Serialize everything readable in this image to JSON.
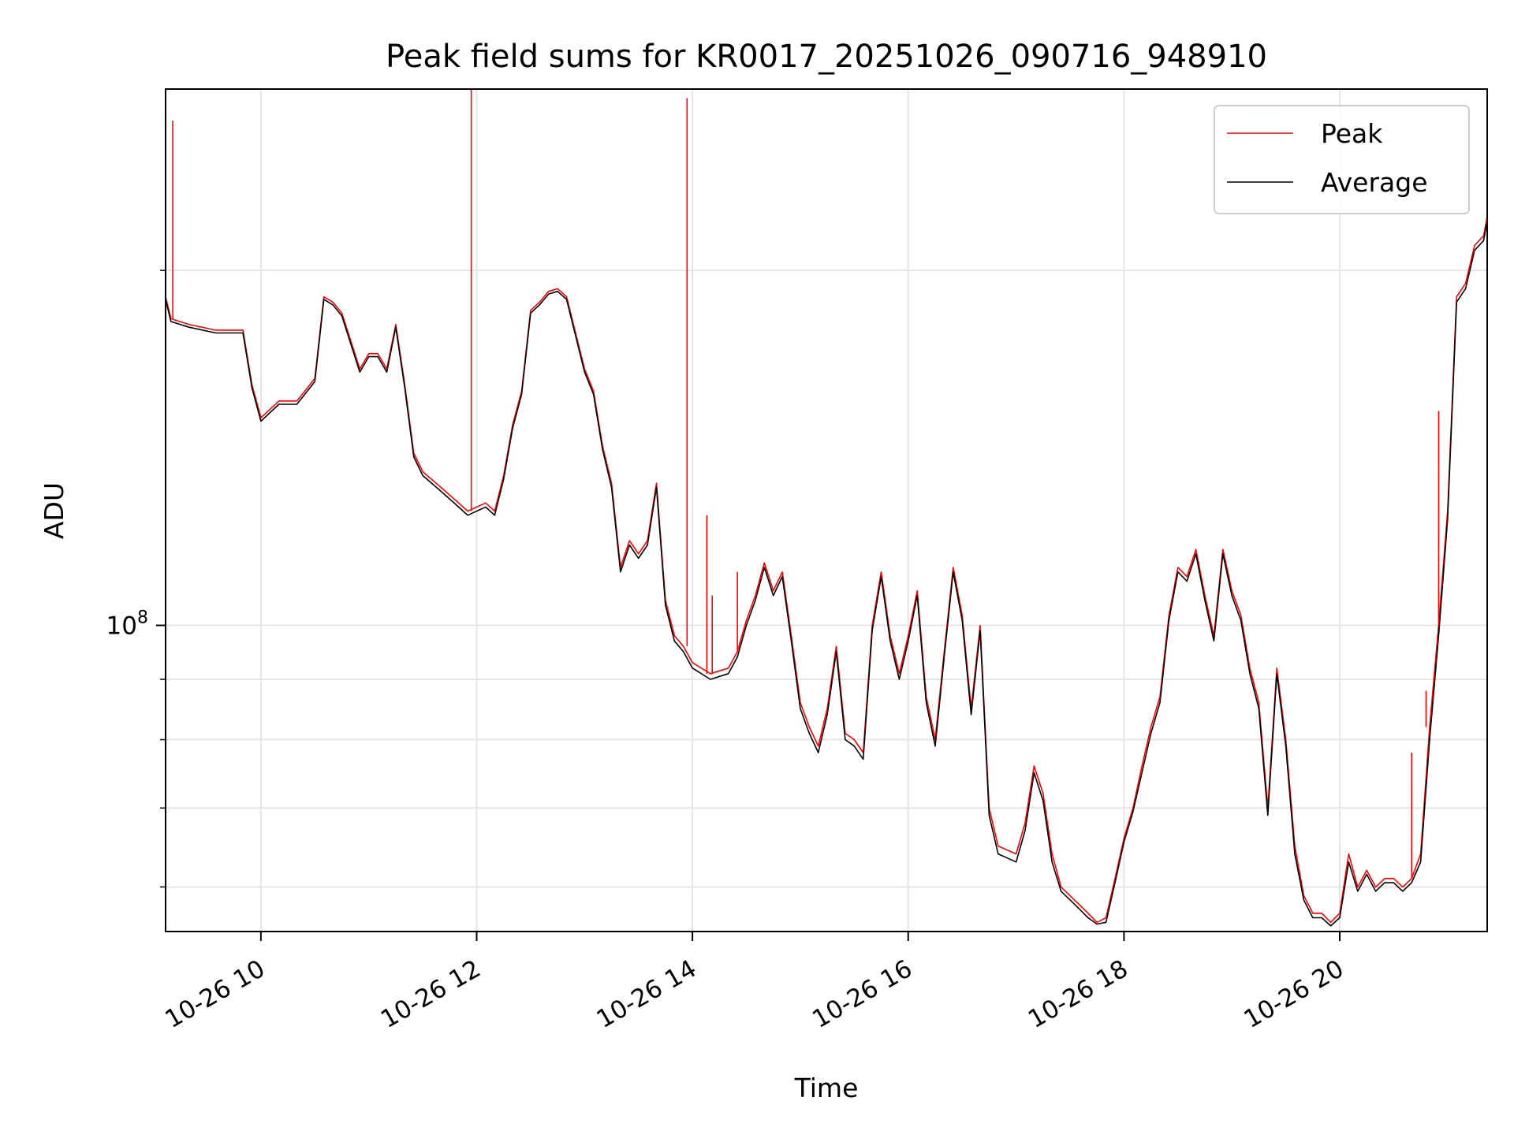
{
  "chart_data": {
    "type": "line",
    "title": "Peak field sums for KR0017_20251026_090716_948910",
    "xlabel": "Time",
    "ylabel": "ADU",
    "y_scale": "log",
    "grid": true,
    "legend_placement": "top-right",
    "xlim": [
      "2025-10-26 09:07",
      "2025-10-26 21:22"
    ],
    "ylim": [
      55000000,
      285000000
    ],
    "x_ticks": [
      {
        "value": "2025-10-26 10:00",
        "label": "10-26 10"
      },
      {
        "value": "2025-10-26 12:00",
        "label": "10-26 12"
      },
      {
        "value": "2025-10-26 14:00",
        "label": "10-26 14"
      },
      {
        "value": "2025-10-26 16:00",
        "label": "10-26 16"
      },
      {
        "value": "2025-10-26 18:00",
        "label": "10-26 18"
      },
      {
        "value": "2025-10-26 20:00",
        "label": "10-26 20"
      }
    ],
    "y_major_ticks": [
      {
        "value": 100000000,
        "base": "10",
        "exponent": "8"
      }
    ],
    "y_minor_ticks": [
      60000000,
      70000000,
      80000000,
      90000000,
      200000000
    ],
    "series": [
      {
        "name": "Peak",
        "color": "#ff0000",
        "x": [
          "2025-10-26 09:07",
          "2025-10-26 09:10",
          "2025-10-26 09:20",
          "2025-10-26 09:35",
          "2025-10-26 09:50",
          "2025-10-26 09:55",
          "2025-10-26 10:00",
          "2025-10-26 10:10",
          "2025-10-26 10:20",
          "2025-10-26 10:30",
          "2025-10-26 10:35",
          "2025-10-26 10:40",
          "2025-10-26 10:45",
          "2025-10-26 10:55",
          "2025-10-26 11:00",
          "2025-10-26 11:05",
          "2025-10-26 11:10",
          "2025-10-26 11:15",
          "2025-10-26 11:20",
          "2025-10-26 11:25",
          "2025-10-26 11:30",
          "2025-10-26 11:40",
          "2025-10-26 11:50",
          "2025-10-26 11:55",
          "2025-10-26 12:05",
          "2025-10-26 12:10",
          "2025-10-26 12:15",
          "2025-10-26 12:20",
          "2025-10-26 12:25",
          "2025-10-26 12:30",
          "2025-10-26 12:35",
          "2025-10-26 12:40",
          "2025-10-26 12:45",
          "2025-10-26 12:50",
          "2025-10-26 13:00",
          "2025-10-26 13:05",
          "2025-10-26 13:10",
          "2025-10-26 13:15",
          "2025-10-26 13:20",
          "2025-10-26 13:25",
          "2025-10-26 13:30",
          "2025-10-26 13:35",
          "2025-10-26 13:40",
          "2025-10-26 13:45",
          "2025-10-26 13:50",
          "2025-10-26 13:55",
          "2025-10-26 14:00",
          "2025-10-26 14:10",
          "2025-10-26 14:20",
          "2025-10-26 14:25",
          "2025-10-26 14:30",
          "2025-10-26 14:35",
          "2025-10-26 14:40",
          "2025-10-26 14:45",
          "2025-10-26 14:50",
          "2025-10-26 14:55",
          "2025-10-26 15:00",
          "2025-10-26 15:05",
          "2025-10-26 15:10",
          "2025-10-26 15:15",
          "2025-10-26 15:20",
          "2025-10-26 15:25",
          "2025-10-26 15:30",
          "2025-10-26 15:35",
          "2025-10-26 15:40",
          "2025-10-26 15:45",
          "2025-10-26 15:50",
          "2025-10-26 15:55",
          "2025-10-26 16:00",
          "2025-10-26 16:05",
          "2025-10-26 16:10",
          "2025-10-26 16:15",
          "2025-10-26 16:20",
          "2025-10-26 16:25",
          "2025-10-26 16:30",
          "2025-10-26 16:35",
          "2025-10-26 16:40",
          "2025-10-26 16:45",
          "2025-10-26 16:50",
          "2025-10-26 17:00",
          "2025-10-26 17:05",
          "2025-10-26 17:10",
          "2025-10-26 17:15",
          "2025-10-26 17:20",
          "2025-10-26 17:25",
          "2025-10-26 17:30",
          "2025-10-26 17:35",
          "2025-10-26 17:40",
          "2025-10-26 17:45",
          "2025-10-26 17:50",
          "2025-10-26 17:55",
          "2025-10-26 18:00",
          "2025-10-26 18:05",
          "2025-10-26 18:10",
          "2025-10-26 18:15",
          "2025-10-26 18:20",
          "2025-10-26 18:25",
          "2025-10-26 18:30",
          "2025-10-26 18:35",
          "2025-10-26 18:40",
          "2025-10-26 18:45",
          "2025-10-26 18:50",
          "2025-10-26 18:55",
          "2025-10-26 19:00",
          "2025-10-26 19:05",
          "2025-10-26 19:10",
          "2025-10-26 19:15",
          "2025-10-26 19:20",
          "2025-10-26 19:25",
          "2025-10-26 19:30",
          "2025-10-26 19:35",
          "2025-10-26 19:40",
          "2025-10-26 19:45",
          "2025-10-26 19:50",
          "2025-10-26 19:55",
          "2025-10-26 20:00",
          "2025-10-26 20:05",
          "2025-10-26 20:10",
          "2025-10-26 20:15",
          "2025-10-26 20:20",
          "2025-10-26 20:25",
          "2025-10-26 20:30",
          "2025-10-26 20:35",
          "2025-10-26 20:40",
          "2025-10-26 20:45",
          "2025-10-26 20:50",
          "2025-10-26 20:55",
          "2025-10-26 21:00",
          "2025-10-26 21:05",
          "2025-10-26 21:10",
          "2025-10-26 21:15",
          "2025-10-26 21:20",
          "2025-10-26 21:22"
        ],
        "values": [
          190000000,
          182000000,
          180000000,
          178000000,
          178000000,
          160000000,
          150000000,
          155000000,
          155000000,
          162000000,
          190000000,
          188000000,
          184000000,
          165000000,
          170000000,
          170000000,
          165000000,
          180000000,
          160000000,
          140000000,
          135000000,
          131000000,
          127000000,
          125000000,
          127000000,
          125000000,
          134000000,
          148000000,
          158000000,
          185000000,
          188000000,
          192000000,
          193000000,
          190000000,
          165000000,
          158000000,
          142000000,
          132000000,
          112000000,
          118000000,
          115000000,
          118000000,
          132000000,
          105000000,
          98000000,
          96000000,
          93000000,
          91000000,
          92000000,
          95000000,
          101000000,
          106000000,
          113000000,
          107000000,
          111000000,
          98000000,
          86000000,
          82000000,
          79000000,
          85000000,
          96000000,
          81000000,
          80000000,
          78000000,
          100000000,
          111000000,
          98000000,
          91000000,
          98000000,
          107000000,
          87000000,
          80000000,
          95000000,
          112000000,
          102000000,
          85000000,
          100000000,
          70000000,
          65000000,
          64000000,
          68000000,
          76000000,
          72000000,
          64000000,
          60000000,
          59000000,
          58000000,
          57000000,
          56000000,
          56500000,
          61000000,
          66000000,
          70000000,
          76000000,
          82000000,
          87000000,
          102000000,
          112000000,
          110000000,
          116000000,
          106000000,
          98000000,
          116000000,
          107000000,
          102000000,
          92000000,
          86000000,
          70000000,
          92000000,
          80000000,
          65000000,
          59000000,
          57000000,
          57000000,
          56000000,
          57000000,
          64000000,
          60000000,
          62000000,
          60000000,
          61000000,
          61000000,
          60000000,
          61000000,
          64000000,
          82000000,
          100000000,
          125000000,
          190000000,
          195000000,
          210000000,
          214000000,
          222000000
        ]
      },
      {
        "name": "Average",
        "color": "#000000",
        "x": [
          "2025-10-26 09:07",
          "2025-10-26 09:10",
          "2025-10-26 09:20",
          "2025-10-26 09:35",
          "2025-10-26 09:50",
          "2025-10-26 09:55",
          "2025-10-26 10:00",
          "2025-10-26 10:10",
          "2025-10-26 10:20",
          "2025-10-26 10:30",
          "2025-10-26 10:35",
          "2025-10-26 10:40",
          "2025-10-26 10:45",
          "2025-10-26 10:55",
          "2025-10-26 11:00",
          "2025-10-26 11:05",
          "2025-10-26 11:10",
          "2025-10-26 11:15",
          "2025-10-26 11:20",
          "2025-10-26 11:25",
          "2025-10-26 11:30",
          "2025-10-26 11:40",
          "2025-10-26 11:50",
          "2025-10-26 11:55",
          "2025-10-26 12:05",
          "2025-10-26 12:10",
          "2025-10-26 12:15",
          "2025-10-26 12:20",
          "2025-10-26 12:25",
          "2025-10-26 12:30",
          "2025-10-26 12:35",
          "2025-10-26 12:40",
          "2025-10-26 12:45",
          "2025-10-26 12:50",
          "2025-10-26 13:00",
          "2025-10-26 13:05",
          "2025-10-26 13:10",
          "2025-10-26 13:15",
          "2025-10-26 13:20",
          "2025-10-26 13:25",
          "2025-10-26 13:30",
          "2025-10-26 13:35",
          "2025-10-26 13:40",
          "2025-10-26 13:45",
          "2025-10-26 13:50",
          "2025-10-26 13:55",
          "2025-10-26 14:00",
          "2025-10-26 14:10",
          "2025-10-26 14:20",
          "2025-10-26 14:25",
          "2025-10-26 14:30",
          "2025-10-26 14:35",
          "2025-10-26 14:40",
          "2025-10-26 14:45",
          "2025-10-26 14:50",
          "2025-10-26 14:55",
          "2025-10-26 15:00",
          "2025-10-26 15:05",
          "2025-10-26 15:10",
          "2025-10-26 15:15",
          "2025-10-26 15:20",
          "2025-10-26 15:25",
          "2025-10-26 15:30",
          "2025-10-26 15:35",
          "2025-10-26 15:40",
          "2025-10-26 15:45",
          "2025-10-26 15:50",
          "2025-10-26 15:55",
          "2025-10-26 16:00",
          "2025-10-26 16:05",
          "2025-10-26 16:10",
          "2025-10-26 16:15",
          "2025-10-26 16:20",
          "2025-10-26 16:25",
          "2025-10-26 16:30",
          "2025-10-26 16:35",
          "2025-10-26 16:40",
          "2025-10-26 16:45",
          "2025-10-26 16:50",
          "2025-10-26 17:00",
          "2025-10-26 17:05",
          "2025-10-26 17:10",
          "2025-10-26 17:15",
          "2025-10-26 17:20",
          "2025-10-26 17:25",
          "2025-10-26 17:30",
          "2025-10-26 17:35",
          "2025-10-26 17:40",
          "2025-10-26 17:45",
          "2025-10-26 17:50",
          "2025-10-26 17:55",
          "2025-10-26 18:00",
          "2025-10-26 18:05",
          "2025-10-26 18:10",
          "2025-10-26 18:15",
          "2025-10-26 18:20",
          "2025-10-26 18:25",
          "2025-10-26 18:30",
          "2025-10-26 18:35",
          "2025-10-26 18:40",
          "2025-10-26 18:45",
          "2025-10-26 18:50",
          "2025-10-26 18:55",
          "2025-10-26 19:00",
          "2025-10-26 19:05",
          "2025-10-26 19:10",
          "2025-10-26 19:15",
          "2025-10-26 19:20",
          "2025-10-26 19:25",
          "2025-10-26 19:30",
          "2025-10-26 19:35",
          "2025-10-26 19:40",
          "2025-10-26 19:45",
          "2025-10-26 19:50",
          "2025-10-26 19:55",
          "2025-10-26 20:00",
          "2025-10-26 20:05",
          "2025-10-26 20:10",
          "2025-10-26 20:15",
          "2025-10-26 20:20",
          "2025-10-26 20:25",
          "2025-10-26 20:30",
          "2025-10-26 20:35",
          "2025-10-26 20:40",
          "2025-10-26 20:45",
          "2025-10-26 20:50",
          "2025-10-26 20:55",
          "2025-10-26 21:00",
          "2025-10-26 21:05",
          "2025-10-26 21:10",
          "2025-10-26 21:15",
          "2025-10-26 21:20",
          "2025-10-26 21:22"
        ],
        "values": [
          189000000,
          181000000,
          179000000,
          177000000,
          177000000,
          159000000,
          149000000,
          154000000,
          154000000,
          161000000,
          189000000,
          187000000,
          183000000,
          164000000,
          169000000,
          169000000,
          164000000,
          179000000,
          159000000,
          139000000,
          134000000,
          130000000,
          126000000,
          124000000,
          126000000,
          124000000,
          133000000,
          147000000,
          157000000,
          184000000,
          187000000,
          191000000,
          192000000,
          189000000,
          164000000,
          157000000,
          141000000,
          131000000,
          111000000,
          117000000,
          114000000,
          117000000,
          131000000,
          104000000,
          97000000,
          95000000,
          92000000,
          90000000,
          91000000,
          94000000,
          100000000,
          105000000,
          112000000,
          106000000,
          110000000,
          97000000,
          85000000,
          81000000,
          78000000,
          84000000,
          95000000,
          80000000,
          79000000,
          77000000,
          99000000,
          110000000,
          97000000,
          90000000,
          97000000,
          106000000,
          86000000,
          79000000,
          94000000,
          111000000,
          101000000,
          84000000,
          99000000,
          69000000,
          64000000,
          63000000,
          67000000,
          75000000,
          71000000,
          63000000,
          59500000,
          58500000,
          57500000,
          56500000,
          55800000,
          56000000,
          60500000,
          65500000,
          69500000,
          75000000,
          81000000,
          86000000,
          101000000,
          111000000,
          109000000,
          115000000,
          105000000,
          97000000,
          115000000,
          106000000,
          101000000,
          91000000,
          85000000,
          69000000,
          91000000,
          79000000,
          64000000,
          58500000,
          56500000,
          56500000,
          55600000,
          56500000,
          63000000,
          59500000,
          61500000,
          59500000,
          60500000,
          60500000,
          59500000,
          60500000,
          63000000,
          80000000,
          98000000,
          123000000,
          188000000,
          193000000,
          208000000,
          212000000,
          220000000
        ]
      }
    ],
    "spikes": [
      {
        "series": "Peak",
        "x": "2025-10-26 09:11",
        "value": 268000000
      },
      {
        "series": "Peak",
        "x": "2025-10-26 11:57",
        "value": 285000000
      },
      {
        "series": "Peak",
        "x": "2025-10-26 13:57",
        "value": 280000000
      },
      {
        "series": "Peak",
        "x": "2025-10-26 14:08",
        "value": 124000000
      },
      {
        "series": "Peak",
        "x": "2025-10-26 14:11",
        "value": 106000000
      },
      {
        "series": "Peak",
        "x": "2025-10-26 14:25",
        "value": 111000000
      },
      {
        "series": "Peak",
        "x": "2025-10-26 20:40",
        "value": 78000000
      },
      {
        "series": "Peak",
        "x": "2025-10-26 20:48",
        "value": 88000000
      },
      {
        "series": "Peak",
        "x": "2025-10-26 20:55",
        "value": 152000000
      }
    ]
  }
}
